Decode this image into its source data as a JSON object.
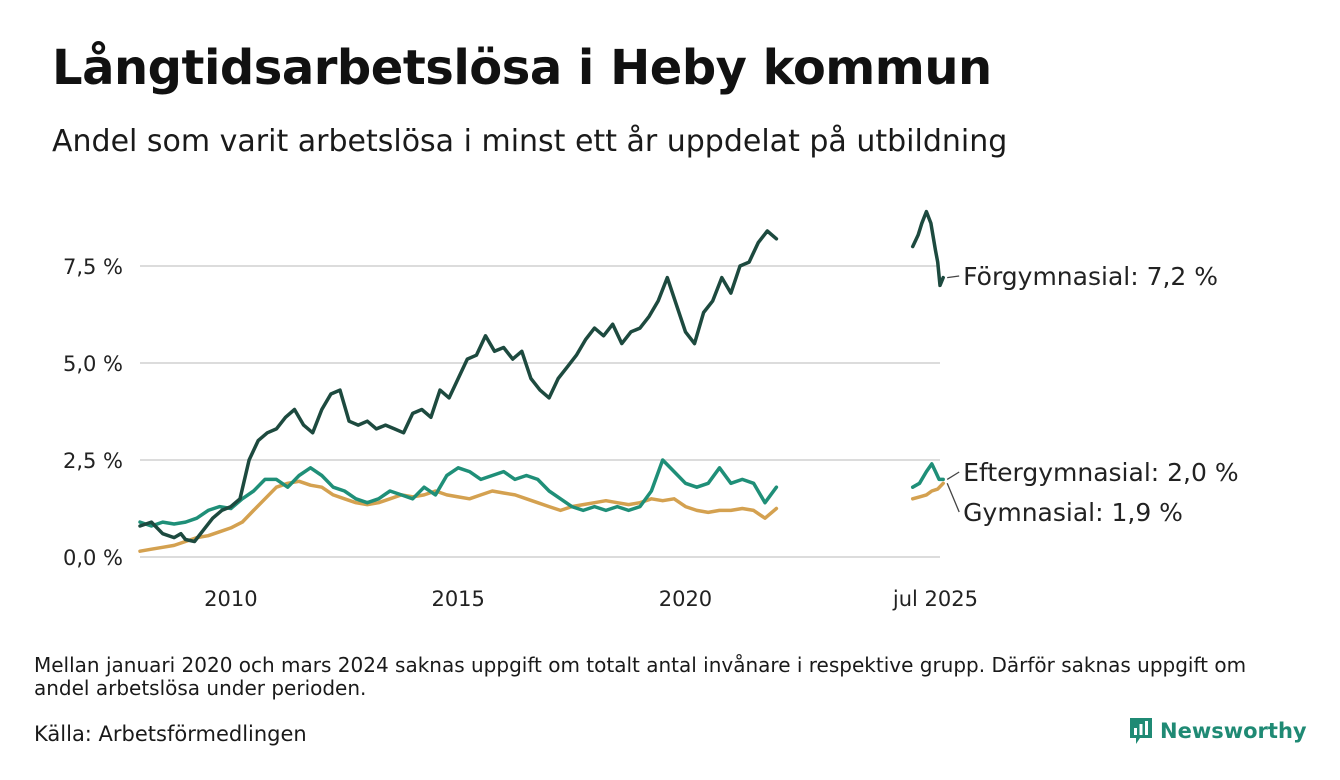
{
  "header": {
    "title": "Långtidsarbetslösa i Heby kommun",
    "subtitle": "Andel som varit arbetslösa i minst ett år uppdelat på utbildning"
  },
  "footer": {
    "note": "Mellan januari 2020 och mars 2024 saknas uppgift om totalt antal invånare i respektive grupp. Därför saknas uppgift om andel arbetslösa under perioden.",
    "source": "Källa: Arbetsförmedlingen",
    "brand": "Newsworthy",
    "brand_icon": "bar-chart-logo-icon",
    "brand_color": "#1f8a74"
  },
  "chart_data": {
    "type": "line",
    "title": "Långtidsarbetslösa i Heby kommun",
    "subtitle": "Andel som varit arbetslösa i minst ett år uppdelat på utbildning",
    "xlabel": "",
    "ylabel": "",
    "x_range": [
      2008.0,
      2025.6
    ],
    "ylim": [
      0,
      9.2
    ],
    "x_ticks": [
      {
        "x": 2010.0,
        "label": "2010"
      },
      {
        "x": 2015.0,
        "label": "2015"
      },
      {
        "x": 2020.0,
        "label": "2020"
      },
      {
        "x": 2025.5,
        "label": "jul 2025"
      }
    ],
    "y_ticks": [
      {
        "y": 0,
        "label": "0,0 %"
      },
      {
        "y": 2.5,
        "label": "2,5 %"
      },
      {
        "y": 5.0,
        "label": "5,0 %"
      },
      {
        "y": 7.5,
        "label": "7,5 %"
      }
    ],
    "grid": "horizontal",
    "legend": "direct labels at right end of lines",
    "series": [
      {
        "name": "Förgymnasial",
        "label": "Förgymnasial: 7,2 %",
        "color": "#1d4a3f",
        "segments": [
          [
            [
              2008.0,
              0.8
            ],
            [
              2008.25,
              0.9
            ],
            [
              2008.5,
              0.6
            ],
            [
              2008.75,
              0.5
            ],
            [
              2008.9,
              0.6
            ],
            [
              2009.0,
              0.45
            ],
            [
              2009.2,
              0.4
            ],
            [
              2009.4,
              0.7
            ],
            [
              2009.6,
              1.0
            ],
            [
              2009.8,
              1.2
            ],
            [
              2010.0,
              1.3
            ],
            [
              2010.2,
              1.5
            ],
            [
              2010.4,
              2.5
            ],
            [
              2010.6,
              3.0
            ],
            [
              2010.8,
              3.2
            ],
            [
              2011.0,
              3.3
            ],
            [
              2011.2,
              3.6
            ],
            [
              2011.4,
              3.8
            ],
            [
              2011.6,
              3.4
            ],
            [
              2011.8,
              3.2
            ],
            [
              2012.0,
              3.8
            ],
            [
              2012.2,
              4.2
            ],
            [
              2012.4,
              4.3
            ],
            [
              2012.6,
              3.5
            ],
            [
              2012.8,
              3.4
            ],
            [
              2013.0,
              3.5
            ],
            [
              2013.2,
              3.3
            ],
            [
              2013.4,
              3.4
            ],
            [
              2013.6,
              3.3
            ],
            [
              2013.8,
              3.2
            ],
            [
              2014.0,
              3.7
            ],
            [
              2014.2,
              3.8
            ],
            [
              2014.4,
              3.6
            ],
            [
              2014.6,
              4.3
            ],
            [
              2014.8,
              4.1
            ],
            [
              2015.0,
              4.6
            ],
            [
              2015.2,
              5.1
            ],
            [
              2015.4,
              5.2
            ],
            [
              2015.6,
              5.7
            ],
            [
              2015.8,
              5.3
            ],
            [
              2016.0,
              5.4
            ],
            [
              2016.2,
              5.1
            ],
            [
              2016.4,
              5.3
            ],
            [
              2016.6,
              4.6
            ],
            [
              2016.8,
              4.3
            ],
            [
              2017.0,
              4.1
            ],
            [
              2017.2,
              4.6
            ],
            [
              2017.4,
              4.9
            ],
            [
              2017.6,
              5.2
            ],
            [
              2017.8,
              5.6
            ],
            [
              2018.0,
              5.9
            ],
            [
              2018.2,
              5.7
            ],
            [
              2018.4,
              6.0
            ],
            [
              2018.6,
              5.5
            ],
            [
              2018.8,
              5.8
            ],
            [
              2019.0,
              5.9
            ],
            [
              2019.2,
              6.2
            ],
            [
              2019.4,
              6.6
            ],
            [
              2019.6,
              7.2
            ],
            [
              2019.8,
              6.5
            ],
            [
              2020.0,
              5.8
            ],
            [
              2020.2,
              5.5
            ],
            [
              2020.4,
              6.3
            ],
            [
              2020.6,
              6.6
            ],
            [
              2020.8,
              7.2
            ],
            [
              2021.0,
              6.8
            ],
            [
              2021.2,
              7.5
            ],
            [
              2021.4,
              7.6
            ],
            [
              2021.6,
              8.1
            ],
            [
              2021.8,
              8.4
            ],
            [
              2022.0,
              8.2
            ]
          ],
          [
            [
              2025.0,
              8.0
            ],
            [
              2025.12,
              8.3
            ],
            [
              2025.2,
              8.6
            ],
            [
              2025.3,
              8.9
            ],
            [
              2025.4,
              8.6
            ],
            [
              2025.5,
              7.9
            ],
            [
              2025.55,
              7.6
            ],
            [
              2025.6,
              7.0
            ],
            [
              2025.67,
              7.2
            ]
          ]
        ]
      },
      {
        "name": "Eftergymnasial",
        "label": "Eftergymnasial: 2,0 %",
        "color": "#1f8f78",
        "segments": [
          [
            [
              2008.0,
              0.9
            ],
            [
              2008.25,
              0.8
            ],
            [
              2008.5,
              0.9
            ],
            [
              2008.75,
              0.85
            ],
            [
              2009.0,
              0.9
            ],
            [
              2009.25,
              1.0
            ],
            [
              2009.5,
              1.2
            ],
            [
              2009.75,
              1.3
            ],
            [
              2010.0,
              1.25
            ],
            [
              2010.25,
              1.5
            ],
            [
              2010.5,
              1.7
            ],
            [
              2010.75,
              2.0
            ],
            [
              2011.0,
              2.0
            ],
            [
              2011.25,
              1.8
            ],
            [
              2011.5,
              2.1
            ],
            [
              2011.75,
              2.3
            ],
            [
              2012.0,
              2.1
            ],
            [
              2012.25,
              1.8
            ],
            [
              2012.5,
              1.7
            ],
            [
              2012.75,
              1.5
            ],
            [
              2013.0,
              1.4
            ],
            [
              2013.25,
              1.5
            ],
            [
              2013.5,
              1.7
            ],
            [
              2013.75,
              1.6
            ],
            [
              2014.0,
              1.5
            ],
            [
              2014.25,
              1.8
            ],
            [
              2014.5,
              1.6
            ],
            [
              2014.75,
              2.1
            ],
            [
              2015.0,
              2.3
            ],
            [
              2015.25,
              2.2
            ],
            [
              2015.5,
              2.0
            ],
            [
              2015.75,
              2.1
            ],
            [
              2016.0,
              2.2
            ],
            [
              2016.25,
              2.0
            ],
            [
              2016.5,
              2.1
            ],
            [
              2016.75,
              2.0
            ],
            [
              2017.0,
              1.7
            ],
            [
              2017.25,
              1.5
            ],
            [
              2017.5,
              1.3
            ],
            [
              2017.75,
              1.2
            ],
            [
              2018.0,
              1.3
            ],
            [
              2018.25,
              1.2
            ],
            [
              2018.5,
              1.3
            ],
            [
              2018.75,
              1.2
            ],
            [
              2019.0,
              1.3
            ],
            [
              2019.25,
              1.7
            ],
            [
              2019.5,
              2.5
            ],
            [
              2019.75,
              2.2
            ],
            [
              2020.0,
              1.9
            ],
            [
              2020.25,
              1.8
            ],
            [
              2020.5,
              1.9
            ],
            [
              2020.75,
              2.3
            ],
            [
              2021.0,
              1.9
            ],
            [
              2021.25,
              2.0
            ],
            [
              2021.5,
              1.9
            ],
            [
              2021.75,
              1.4
            ],
            [
              2022.0,
              1.8
            ]
          ],
          [
            [
              2025.0,
              1.8
            ],
            [
              2025.15,
              1.9
            ],
            [
              2025.3,
              2.2
            ],
            [
              2025.42,
              2.4
            ],
            [
              2025.5,
              2.2
            ],
            [
              2025.58,
              2.0
            ],
            [
              2025.67,
              2.0
            ]
          ]
        ]
      },
      {
        "name": "Gymnasial",
        "label": "Gymnasial: 1,9 %",
        "color": "#d4a150",
        "segments": [
          [
            [
              2008.0,
              0.15
            ],
            [
              2008.25,
              0.2
            ],
            [
              2008.5,
              0.25
            ],
            [
              2008.75,
              0.3
            ],
            [
              2009.0,
              0.4
            ],
            [
              2009.25,
              0.5
            ],
            [
              2009.5,
              0.55
            ],
            [
              2009.75,
              0.65
            ],
            [
              2010.0,
              0.75
            ],
            [
              2010.25,
              0.9
            ],
            [
              2010.5,
              1.2
            ],
            [
              2010.75,
              1.5
            ],
            [
              2011.0,
              1.8
            ],
            [
              2011.25,
              1.9
            ],
            [
              2011.5,
              1.95
            ],
            [
              2011.75,
              1.85
            ],
            [
              2012.0,
              1.8
            ],
            [
              2012.25,
              1.6
            ],
            [
              2012.5,
              1.5
            ],
            [
              2012.75,
              1.4
            ],
            [
              2013.0,
              1.35
            ],
            [
              2013.25,
              1.4
            ],
            [
              2013.5,
              1.5
            ],
            [
              2013.75,
              1.6
            ],
            [
              2014.0,
              1.55
            ],
            [
              2014.25,
              1.6
            ],
            [
              2014.5,
              1.7
            ],
            [
              2014.75,
              1.6
            ],
            [
              2015.0,
              1.55
            ],
            [
              2015.25,
              1.5
            ],
            [
              2015.5,
              1.6
            ],
            [
              2015.75,
              1.7
            ],
            [
              2016.0,
              1.65
            ],
            [
              2016.25,
              1.6
            ],
            [
              2016.5,
              1.5
            ],
            [
              2016.75,
              1.4
            ],
            [
              2017.0,
              1.3
            ],
            [
              2017.25,
              1.2
            ],
            [
              2017.5,
              1.3
            ],
            [
              2017.75,
              1.35
            ],
            [
              2018.0,
              1.4
            ],
            [
              2018.25,
              1.45
            ],
            [
              2018.5,
              1.4
            ],
            [
              2018.75,
              1.35
            ],
            [
              2019.0,
              1.4
            ],
            [
              2019.25,
              1.5
            ],
            [
              2019.5,
              1.45
            ],
            [
              2019.75,
              1.5
            ],
            [
              2020.0,
              1.3
            ],
            [
              2020.25,
              1.2
            ],
            [
              2020.5,
              1.15
            ],
            [
              2020.75,
              1.2
            ],
            [
              2021.0,
              1.2
            ],
            [
              2021.25,
              1.25
            ],
            [
              2021.5,
              1.2
            ],
            [
              2021.75,
              1.0
            ],
            [
              2022.0,
              1.25
            ]
          ],
          [
            [
              2025.0,
              1.5
            ],
            [
              2025.15,
              1.55
            ],
            [
              2025.3,
              1.6
            ],
            [
              2025.42,
              1.7
            ],
            [
              2025.55,
              1.75
            ],
            [
              2025.67,
              1.9
            ]
          ]
        ]
      }
    ]
  }
}
